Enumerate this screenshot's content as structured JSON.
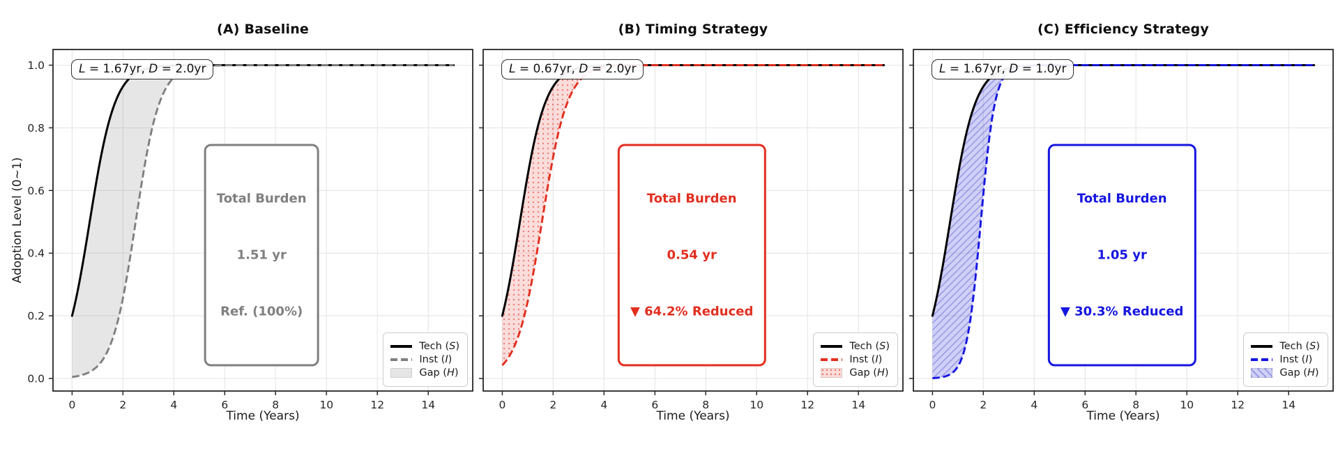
{
  "figure": {
    "background": "#ffffff"
  },
  "axes": {
    "xlabel": "Time (Years)",
    "ylabel": "Adoption Level (0~1)",
    "xlim": [
      -0.75,
      15.75
    ],
    "ylim": [
      -0.04,
      1.05
    ],
    "xticks": [
      0,
      2,
      4,
      6,
      8,
      10,
      12,
      14
    ],
    "yticks": [
      0.0,
      0.2,
      0.4,
      0.6,
      0.8,
      1.0
    ],
    "ytick_labels": [
      "0.0",
      "0.2",
      "0.4",
      "0.6",
      "0.8",
      "1.0"
    ],
    "grid": true,
    "spine_color": "#262626",
    "grid_color": "#e5e5e5"
  },
  "chart_data": {
    "type": "line",
    "x_sample_years": [
      0,
      1,
      2,
      3,
      4,
      5,
      6,
      7,
      8,
      9,
      10,
      11,
      12,
      13,
      14,
      15
    ],
    "tech": {
      "label_pre": "Tech (",
      "label_var": "S",
      "label_post": ")",
      "color": "#000000",
      "logistic": {
        "t0": 0.693,
        "s": 0.5,
        "start": 0.2
      },
      "values": [
        0.2,
        0.649,
        0.932,
        0.99,
        0.999,
        1,
        1,
        1,
        1,
        1,
        1,
        1,
        1,
        1,
        1,
        1
      ]
    },
    "legend_labels": {
      "tech": {
        "pre": "Tech (",
        "var": "S",
        "post": ")"
      },
      "inst": {
        "pre": "Inst (",
        "var": "I",
        "post": ")"
      },
      "gap": {
        "pre": "Gap (",
        "var": "H",
        "post": ")"
      }
    },
    "panels": [
      {
        "id": "A",
        "title": "(A) Baseline",
        "accent": "#808080",
        "ld": {
          "v1": "L",
          "eq1": " = 1.67yr, ",
          "v2": "D",
          "eq2": " = 2.0yr"
        },
        "burden": {
          "l1": "Total Burden",
          "l2": "1.51 yr",
          "l3": "Ref. (100%)",
          "color": "#7f7f7f"
        },
        "inst_logistic": {
          "t0": 2.5,
          "s": 0.47
        },
        "inst_values": [
          0.005,
          0.04,
          0.257,
          0.744,
          0.96,
          0.995,
          0.999,
          1,
          1,
          1,
          1,
          1,
          1,
          1,
          1,
          1
        ],
        "fill": {
          "kind": "solid",
          "base": "rgba(128,128,128,0.20)",
          "accent": "rgba(128,128,128,0.20)"
        },
        "show_ytick_labels": true
      },
      {
        "id": "B",
        "title": "(B) Timing Strategy",
        "accent": "#e22e1f",
        "ld": {
          "v1": "L",
          "eq1": " = 0.67yr, ",
          "v2": "D",
          "eq2": " = 2.0yr"
        },
        "burden": {
          "l1": "Total Burden",
          "l2": "0.54 yr",
          "l3": "▼ 64.2% Reduced",
          "color": "#e22e1f"
        },
        "inst_logistic": {
          "t0": 1.56,
          "s": 0.5
        },
        "inst_values": [
          0.042,
          0.246,
          0.707,
          0.947,
          0.992,
          0.999,
          1,
          1,
          1,
          1,
          1,
          1,
          1,
          1,
          1,
          1
        ],
        "fill": {
          "kind": "dots",
          "base": "rgba(226,46,31,0.16)",
          "accent": "rgba(226,46,31,0.55)"
        },
        "show_ytick_labels": false
      },
      {
        "id": "C",
        "title": "(C) Efficiency Strategy",
        "accent": "#1515e0",
        "ld": {
          "v1": "L",
          "eq1": " = 1.67yr, ",
          "v2": "D",
          "eq2": " = 1.0yr"
        },
        "burden": {
          "l1": "Total Burden",
          "l2": "1.05 yr",
          "l3": "▼ 30.3% Reduced",
          "color": "#1515e0"
        },
        "inst_logistic": {
          "t0": 1.9,
          "s": 0.28
        },
        "inst_values": [
          0.001,
          0.039,
          0.588,
          0.981,
          0.999,
          1,
          1,
          1,
          1,
          1,
          1,
          1,
          1,
          1,
          1,
          1
        ],
        "fill": {
          "kind": "hatch",
          "base": "rgba(100,100,225,0.30)",
          "accent": "rgba(85,85,220,0.55)"
        },
        "show_ytick_labels": false
      }
    ]
  }
}
